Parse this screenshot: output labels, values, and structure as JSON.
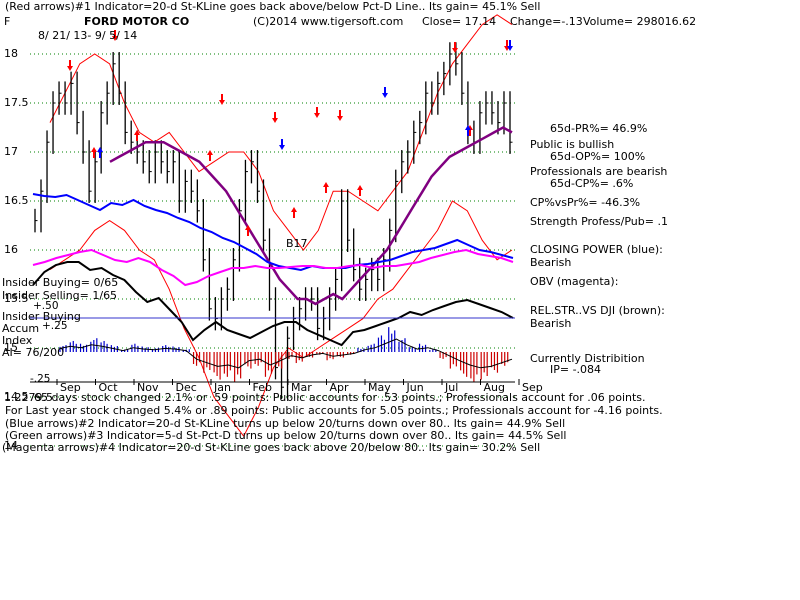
{
  "header": {
    "line1": "(Red arrows)#1 Indicator=20-d St-KLine goes back above/below Pct-D Line.. Its gain= 45.1% Sell",
    "ticker": "F",
    "company": "FORD MOTOR CO",
    "copyright": "(C)2014 www.tigersoft.com",
    "close": "Close= 17.14",
    "change": "Change=-.13",
    "volume": "Volume= 298016.62",
    "date_range": "8/ 21/ 13- 9/ 5/ 14"
  },
  "right_panel": {
    "pr": "65d-PR%= 46.9%",
    "public": "Public is bullish",
    "op": "65d-OP%= 100%",
    "professionals": "Professionals are bearish",
    "cp": "65d-CP%= .6%",
    "cpvspr": "CP%vsPr%= -46.3%",
    "strength": "Strength Profess/Pub= .1",
    "closing_power": "CLOSING POWER (blue):",
    "closing_power_state": "Bearish",
    "obv": "OBV (magenta):",
    "relstr": "REL.STR..VS DJI (brown):",
    "relstr_state": "Bearish",
    "currently": "Currently Distribition",
    "ip": "IP= -.084"
  },
  "left_panel": {
    "insider_buying": "Insider Buying= 0/65",
    "insider_selling": "Insider Selling= 1/65",
    "plus50": "+.50",
    "insider_buying_label": "Insider Buying",
    "accum": "Accum",
    "plus25": "+.25",
    "index": "Index",
    "ai": "AI= 76/200",
    "minus25": "-.25"
  },
  "annotation_b17": "B17",
  "footer": {
    "prefix": "1.2279.5",
    "line1": "65 days stock changed  2.1% or  .59 points:  Public accounts for  .53 points.;  Professionals account for  .06 points.",
    "line2": "For Last year stock changed  5.4% or  .89 points:  Public accounts for  5.05 points.;  Professionals account for -4.16 points.",
    "line3": "(Blue arrows)#2 Indicator=20-d St-KLine turns up below 20/turns down over 80.. Its gain= 44.9% Sell",
    "line4": "(Green arrows)#3 Indicator=5-d St-Pct-D turns up below 20/turns down over 80.. Its gain= 44.5% Sell",
    "line5": "(Magenta arrows)#4 Indicator=20-d St-KLine goes back above 20/below 80.. Its gain= 30.2% Sell"
  },
  "colors": {
    "price": "#000000",
    "band": "#ff0000",
    "ma": "#800080",
    "closing_power": "#0000ff",
    "obv": "#ff00ff",
    "relstr": "#000000",
    "accum_pos": "#0000cc",
    "accum_neg": "#cc0000",
    "grid": "#008000",
    "arrow_red": "#ff0000",
    "arrow_blue": "#0000ff"
  },
  "chart_data": {
    "type": "line",
    "ylim": [
      14,
      18.2
    ],
    "yticks": [
      "18",
      "17.5",
      "17",
      "16.5",
      "16",
      "15.5",
      "15",
      "14.5",
      "14"
    ],
    "months": [
      "Sep",
      "Oct",
      "Nov",
      "Dec",
      "Jan",
      "Feb",
      "Mar",
      "Apr",
      "May",
      "Jun",
      "Jul",
      "Aug",
      "Sep"
    ],
    "grid": true,
    "price_close": [
      16.3,
      16.6,
      17.1,
      17.5,
      17.6,
      17.5,
      17.7,
      17.3,
      17.0,
      16.6,
      16.9,
      17.4,
      17.6,
      17.9,
      17.6,
      17.2,
      17.1,
      17.0,
      16.9,
      16.8,
      17.0,
      16.9,
      16.8,
      16.9,
      16.5,
      16.7,
      16.6,
      16.4,
      15.9,
      15.4,
      15.3,
      15.5,
      15.6,
      15.9,
      16.4,
      16.8,
      16.9,
      16.6,
      16.1,
      15.5,
      14.8,
      14.6,
      15.1,
      15.3,
      15.4,
      15.5,
      15.5,
      15.2,
      15.3,
      15.5,
      15.7,
      16.5,
      16.1,
      15.8,
      15.6,
      15.7,
      15.8,
      15.7,
      15.9,
      16.2,
      16.7,
      16.9,
      17.0,
      17.2,
      17.3,
      17.6,
      17.5,
      17.7,
      17.8,
      18.0,
      17.9,
      17.6,
      17.2,
      17.1,
      17.4,
      17.5,
      17.4,
      17.3,
      17.5,
      17.1
    ],
    "ma": [
      16.9,
      16.95,
      17.0,
      17.05,
      17.1,
      17.1,
      17.1,
      17.05,
      17.0,
      16.95,
      16.9,
      16.8,
      16.7,
      16.6,
      16.45,
      16.3,
      16.15,
      16.0,
      15.85,
      15.7,
      15.6,
      15.5,
      15.5,
      15.45,
      15.5,
      15.55,
      15.5,
      15.6,
      15.7,
      15.8,
      15.9,
      16.0,
      16.15,
      16.3,
      16.45,
      16.6,
      16.75,
      16.85,
      16.95,
      17.0,
      17.05,
      17.1,
      17.15,
      17.2,
      17.25,
      17.2
    ],
    "band_upper": [
      17.3,
      17.6,
      17.9,
      18.0,
      17.9,
      17.5,
      17.2,
      17.1,
      17.2,
      17.0,
      16.8,
      16.9,
      17.0,
      17.0,
      16.8,
      16.4,
      16.2,
      16.0,
      16.2,
      16.6,
      16.6,
      16.5,
      16.4,
      16.6,
      16.8,
      17.2,
      17.6,
      17.9,
      18.1,
      18.3,
      18.4,
      18.3
    ],
    "band_lower": [
      15.8,
      15.9,
      16.0,
      16.2,
      16.3,
      16.2,
      16.0,
      15.9,
      15.6,
      15.2,
      14.9,
      14.5,
      14.3,
      14.1,
      14.4,
      14.8,
      15.0,
      14.9,
      15.0,
      15.1,
      15.2,
      15.3,
      15.5,
      15.6,
      15.8,
      16.0,
      16.2,
      16.5,
      16.4,
      16.1,
      15.9,
      16.0
    ],
    "accum_index": [
      0.05,
      0.08,
      0.06,
      0.1,
      0.08,
      0.05,
      0.02,
      0.06,
      0.04,
      0.03,
      0.05,
      0.04,
      0.02,
      -0.1,
      -0.15,
      -0.2,
      -0.18,
      -0.22,
      -0.12,
      -0.1,
      -0.18,
      -0.12,
      -0.05,
      -0.08,
      -0.04,
      -0.02,
      -0.06,
      -0.04,
      -0.02,
      0.03,
      0.06,
      0.12,
      0.18,
      0.1,
      0.04,
      0.06,
      0.02,
      -0.05,
      -0.12,
      -0.18,
      -0.22,
      -0.2,
      -0.15,
      -0.1
    ]
  }
}
